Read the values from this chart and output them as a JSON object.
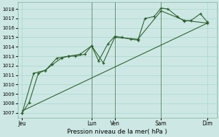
{
  "xlabel": "Pression niveau de la mer( hPa )",
  "bg_color": "#cde8e4",
  "grid_color": "#a8d5cc",
  "line_color": "#2a5e2a",
  "ylim": [
    1006.5,
    1018.7
  ],
  "yticks": [
    1007,
    1008,
    1009,
    1010,
    1011,
    1012,
    1013,
    1014,
    1015,
    1016,
    1017,
    1018
  ],
  "day_labels": [
    "Jeu",
    "",
    "Lun",
    "Ven",
    "",
    "Sam",
    "",
    "Dim"
  ],
  "day_positions": [
    0,
    1.5,
    3,
    4,
    5,
    6,
    7,
    8
  ],
  "xlim": [
    -0.2,
    8.4
  ],
  "series1_x": [
    0,
    0.3,
    0.7,
    1.0,
    1.3,
    1.7,
    2.0,
    2.3,
    2.7,
    3.0,
    3.3,
    3.7,
    4.0,
    4.3,
    4.7,
    5.0,
    5.3,
    5.7,
    6.0,
    6.3,
    6.7,
    7.0,
    7.3,
    7.7,
    8.0
  ],
  "series1_y": [
    1007.0,
    1008.1,
    1011.2,
    1011.5,
    1012.1,
    1012.8,
    1013.0,
    1013.0,
    1013.2,
    1014.1,
    1012.5,
    1014.3,
    1015.1,
    1015.0,
    1014.8,
    1014.7,
    1017.0,
    1017.2,
    1018.1,
    1018.0,
    1017.2,
    1016.7,
    1016.8,
    1017.5,
    1016.6
  ],
  "series2_x": [
    0,
    0.5,
    1.0,
    1.5,
    2.0,
    2.5,
    3.0,
    3.5,
    4.0,
    5.0,
    6.0,
    7.0,
    8.0
  ],
  "series2_y": [
    1007.0,
    1011.2,
    1011.5,
    1012.8,
    1013.0,
    1013.2,
    1014.1,
    1012.3,
    1015.0,
    1014.8,
    1017.8,
    1016.8,
    1016.5
  ],
  "trend_x": [
    0,
    8.0
  ],
  "trend_y": [
    1007.2,
    1016.5
  ],
  "vline_x": [
    3.0,
    4.0,
    6.0
  ],
  "vline_color": "#446644",
  "xlabel_fontsize": 6.5,
  "ytick_fontsize": 5.0,
  "xtick_fontsize": 5.5
}
